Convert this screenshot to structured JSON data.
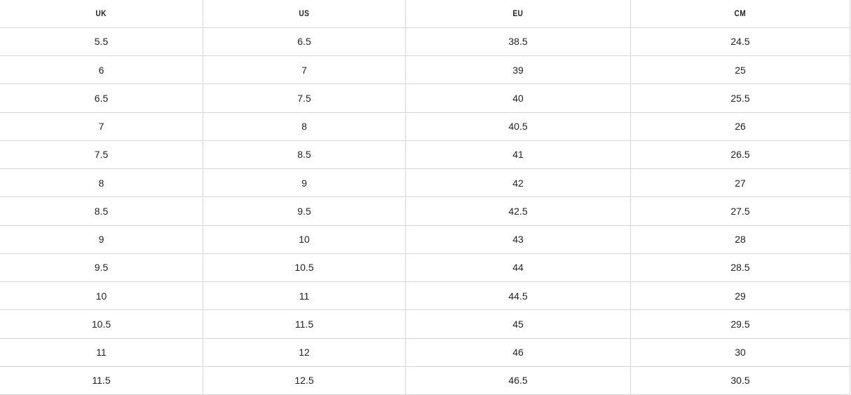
{
  "table": {
    "header": [
      "UK",
      "US",
      "EU",
      "CM"
    ],
    "rows": [
      [
        "5.5",
        "6.5",
        "38.5",
        "24.5"
      ],
      [
        "6",
        "7",
        "39",
        "25"
      ],
      [
        "6.5",
        "7.5",
        "40",
        "25.5"
      ],
      [
        "7",
        "8",
        "40.5",
        "26"
      ],
      [
        "7.5",
        "8.5",
        "41",
        "26.5"
      ],
      [
        "8",
        "9",
        "42",
        "27"
      ],
      [
        "8.5",
        "9.5",
        "42.5",
        "27.5"
      ],
      [
        "9",
        "10",
        "43",
        "28"
      ],
      [
        "9.5",
        "10.5",
        "44",
        "28.5"
      ],
      [
        "10",
        "11",
        "44.5",
        "29"
      ],
      [
        "10.5",
        "11.5",
        "45",
        "29.5"
      ],
      [
        "11",
        "12",
        "46",
        "30"
      ],
      [
        "11.5",
        "12.5",
        "46.5",
        "30.5"
      ]
    ]
  }
}
